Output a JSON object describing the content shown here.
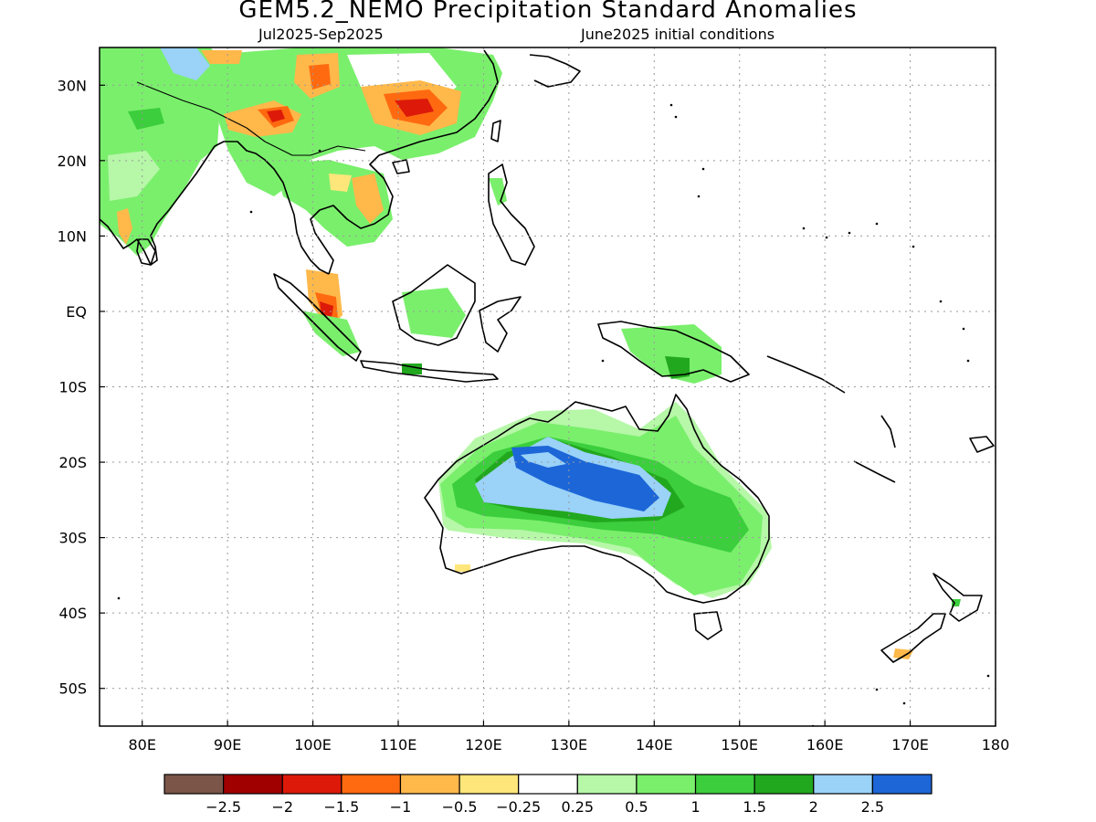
{
  "title": "GEM5.2_NEMO Precipitation Standard Anomalies",
  "subtitle_left": "Jul2025-Sep2025",
  "subtitle_right": "June2025 initial conditions",
  "map": {
    "lon_range": [
      75,
      180
    ],
    "lat_range": [
      -55,
      35
    ],
    "grid": true,
    "lon_ticks": [
      {
        "value": 80,
        "label": "80E"
      },
      {
        "value": 90,
        "label": "90E"
      },
      {
        "value": 100,
        "label": "100E"
      },
      {
        "value": 110,
        "label": "110E"
      },
      {
        "value": 120,
        "label": "120E"
      },
      {
        "value": 130,
        "label": "130E"
      },
      {
        "value": 140,
        "label": "140E"
      },
      {
        "value": 150,
        "label": "150E"
      },
      {
        "value": 160,
        "label": "160E"
      },
      {
        "value": 170,
        "label": "170E"
      },
      {
        "value": 180,
        "label": "180"
      }
    ],
    "lat_ticks": [
      {
        "value": 30,
        "label": "30N"
      },
      {
        "value": 20,
        "label": "20N"
      },
      {
        "value": 10,
        "label": "10N"
      },
      {
        "value": 0,
        "label": "EQ"
      },
      {
        "value": -10,
        "label": "10S"
      },
      {
        "value": -20,
        "label": "20S"
      },
      {
        "value": -30,
        "label": "30S"
      },
      {
        "value": -40,
        "label": "40S"
      },
      {
        "value": -50,
        "label": "50S"
      }
    ]
  },
  "colorbar": {
    "colors": [
      "#7a5548",
      "#a00000",
      "#dd1a0a",
      "#ff6a10",
      "#ffb84a",
      "#ffe67a",
      "#ffffff",
      "#b6f7a8",
      "#7aef6c",
      "#3cce3c",
      "#22a81e",
      "#9ad2f8",
      "#1c66d8"
    ],
    "labels": [
      "-2.5",
      "-2",
      "-1.5",
      "-1",
      "-0.5",
      "-0.25",
      "0.25",
      "0.5",
      "1",
      "1.5",
      "2",
      "2.5"
    ]
  },
  "colors": {
    "strong_positive": "#1c66d8",
    "positive": "#9ad2f8",
    "green_dark": "#22a81e",
    "green_mid": "#3cce3c",
    "green_light": "#7aef6c",
    "green_pale": "#b6f7a8",
    "neg_light": "#ffe67a",
    "neg_mid": "#ffb84a",
    "neg_strong": "#ff6a10",
    "neg_red": "#dd1a0a"
  }
}
